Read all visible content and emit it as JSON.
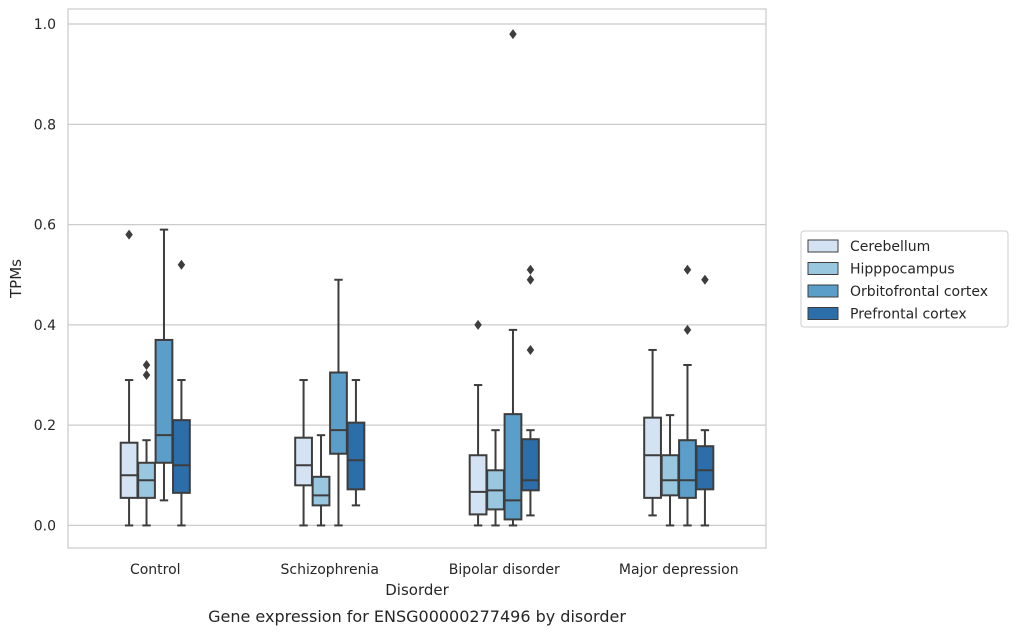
{
  "chart_data": {
    "type": "box",
    "title": "",
    "caption": "Gene expression for ENSG00000277496 by disorder",
    "xlabel": "Disorder",
    "ylabel": "TPMs",
    "ylim": [
      -0.045,
      1.03
    ],
    "yticks": [
      0.0,
      0.2,
      0.4,
      0.6,
      0.8,
      1.0
    ],
    "ytick_labels": [
      "0.0",
      "0.2",
      "0.4",
      "0.6",
      "0.8",
      "1.0"
    ],
    "grid": "horizontal",
    "legend_position": "right",
    "categories": [
      "Control",
      "Schizophrenia",
      "Bipolar disorder",
      "Major depression"
    ],
    "series": [
      {
        "name": "Cerebellum",
        "color": "#d3e3f3",
        "boxes": [
          {
            "whislo": 0.0,
            "q1": 0.055,
            "med": 0.1,
            "q3": 0.165,
            "whishi": 0.29,
            "fliers": [
              0.58
            ]
          },
          {
            "whislo": 0.0,
            "q1": 0.08,
            "med": 0.12,
            "q3": 0.175,
            "whishi": 0.29,
            "fliers": []
          },
          {
            "whislo": 0.0,
            "q1": 0.022,
            "med": 0.067,
            "q3": 0.14,
            "whishi": 0.28,
            "fliers": [
              0.4
            ]
          },
          {
            "whislo": 0.02,
            "q1": 0.055,
            "med": 0.14,
            "q3": 0.215,
            "whishi": 0.35,
            "fliers": []
          }
        ]
      },
      {
        "name": "Hipppocampus",
        "color": "#9ac7e0",
        "boxes": [
          {
            "whislo": 0.0,
            "q1": 0.055,
            "med": 0.09,
            "q3": 0.125,
            "whishi": 0.17,
            "fliers": [
              0.3,
              0.32
            ]
          },
          {
            "whislo": 0.0,
            "q1": 0.04,
            "med": 0.06,
            "q3": 0.097,
            "whishi": 0.18,
            "fliers": []
          },
          {
            "whislo": 0.0,
            "q1": 0.032,
            "med": 0.07,
            "q3": 0.11,
            "whishi": 0.19,
            "fliers": []
          },
          {
            "whislo": 0.0,
            "q1": 0.06,
            "med": 0.09,
            "q3": 0.14,
            "whishi": 0.22,
            "fliers": []
          }
        ]
      },
      {
        "name": "Orbitofrontal cortex",
        "color": "#5b9ec9",
        "boxes": [
          {
            "whislo": 0.05,
            "q1": 0.125,
            "med": 0.18,
            "q3": 0.37,
            "whishi": 0.59,
            "fliers": []
          },
          {
            "whislo": 0.0,
            "q1": 0.143,
            "med": 0.19,
            "q3": 0.305,
            "whishi": 0.49,
            "fliers": []
          },
          {
            "whislo": 0.0,
            "q1": 0.012,
            "med": 0.05,
            "q3": 0.222,
            "whishi": 0.39,
            "fliers": [
              0.98
            ]
          },
          {
            "whislo": 0.0,
            "q1": 0.055,
            "med": 0.09,
            "q3": 0.17,
            "whishi": 0.32,
            "fliers": [
              0.39,
              0.51
            ]
          }
        ]
      },
      {
        "name": "Prefrontal cortex",
        "color": "#2b6ea9",
        "boxes": [
          {
            "whislo": 0.0,
            "q1": 0.065,
            "med": 0.12,
            "q3": 0.21,
            "whishi": 0.29,
            "fliers": [
              0.52
            ]
          },
          {
            "whislo": 0.04,
            "q1": 0.072,
            "med": 0.13,
            "q3": 0.205,
            "whishi": 0.29,
            "fliers": []
          },
          {
            "whislo": 0.02,
            "q1": 0.07,
            "med": 0.09,
            "q3": 0.172,
            "whishi": 0.19,
            "fliers": [
              0.35,
              0.49,
              0.51
            ]
          },
          {
            "whislo": 0.0,
            "q1": 0.072,
            "med": 0.11,
            "q3": 0.158,
            "whishi": 0.19,
            "fliers": [
              0.49
            ]
          }
        ]
      }
    ]
  }
}
